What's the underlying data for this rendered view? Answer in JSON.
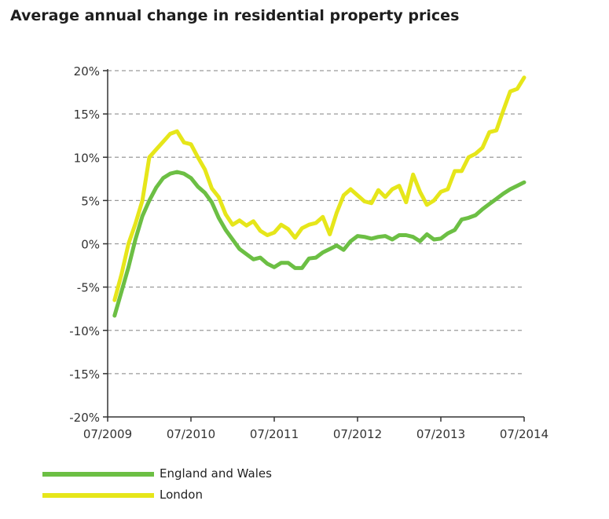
{
  "chart_data": {
    "type": "line",
    "title": "Average annual change in residential property prices",
    "xlabel": "",
    "ylabel": "",
    "ylim": [
      -20,
      20
    ],
    "y_ticks": [
      20,
      15,
      10,
      5,
      0,
      -5,
      -10,
      -15,
      -20
    ],
    "y_tick_labels": [
      "20%",
      "15%",
      "10%",
      "5%",
      "0%",
      "-5%",
      "-10%",
      "-15%",
      "-20%"
    ],
    "x_ticks": [
      "07/2009",
      "07/2010",
      "07/2011",
      "07/2012",
      "07/2013",
      "07/2014"
    ],
    "x_range": [
      "07/2009",
      "07/2014"
    ],
    "grid": "horizontal dashed",
    "legend_position": "bottom-left",
    "x": [
      "08/2009",
      "09/2009",
      "10/2009",
      "11/2009",
      "12/2009",
      "01/2010",
      "02/2010",
      "03/2010",
      "04/2010",
      "05/2010",
      "06/2010",
      "07/2010",
      "08/2010",
      "09/2010",
      "10/2010",
      "11/2010",
      "12/2010",
      "01/2011",
      "02/2011",
      "03/2011",
      "04/2011",
      "05/2011",
      "06/2011",
      "07/2011",
      "08/2011",
      "09/2011",
      "10/2011",
      "11/2011",
      "12/2011",
      "01/2012",
      "02/2012",
      "03/2012",
      "04/2012",
      "05/2012",
      "06/2012",
      "07/2012",
      "08/2012",
      "09/2012",
      "10/2012",
      "11/2012",
      "12/2012",
      "01/2013",
      "02/2013",
      "03/2013",
      "04/2013",
      "05/2013",
      "06/2013",
      "07/2013",
      "08/2013",
      "09/2013",
      "10/2013",
      "11/2013",
      "12/2013",
      "01/2014",
      "02/2014",
      "03/2014",
      "04/2014",
      "05/2014",
      "06/2014",
      "07/2014"
    ],
    "series": [
      {
        "name": "England and Wales",
        "color": "#6cbf44",
        "values": [
          -8.3,
          -5.5,
          -2.7,
          0.5,
          3.2,
          5.0,
          6.5,
          7.6,
          8.1,
          8.3,
          8.1,
          7.6,
          6.6,
          5.9,
          4.8,
          3.0,
          1.6,
          0.5,
          -0.6,
          -1.2,
          -1.8,
          -1.6,
          -2.3,
          -2.7,
          -2.2,
          -2.2,
          -2.8,
          -2.8,
          -1.7,
          -1.6,
          -1.0,
          -0.6,
          -0.2,
          -0.7,
          0.3,
          0.9,
          0.8,
          0.6,
          0.8,
          0.9,
          0.5,
          1.0,
          1.0,
          0.8,
          0.3,
          1.1,
          0.5,
          0.6,
          1.2,
          1.6,
          2.8,
          3.0,
          3.3,
          4.0,
          4.6,
          5.2,
          5.8,
          6.3,
          6.7,
          7.1
        ]
      },
      {
        "name": "London",
        "color": "#e6e61a",
        "values": [
          -6.5,
          -3.5,
          0.0,
          2.3,
          5.0,
          10.0,
          10.9,
          11.8,
          12.7,
          13.0,
          11.7,
          11.5,
          10.0,
          8.6,
          6.4,
          5.4,
          3.4,
          2.2,
          2.7,
          2.1,
          2.6,
          1.5,
          1.0,
          1.3,
          2.2,
          1.7,
          0.7,
          1.8,
          2.2,
          2.4,
          3.1,
          1.1,
          3.6,
          5.6,
          6.3,
          5.6,
          4.9,
          4.7,
          6.2,
          5.4,
          6.3,
          6.7,
          4.8,
          8.0,
          6.0,
          4.5,
          5.0,
          6.0,
          6.3,
          8.4,
          8.4,
          10.0,
          10.4,
          11.1,
          12.9,
          13.1,
          15.4,
          17.6,
          17.9,
          19.2
        ]
      }
    ]
  }
}
